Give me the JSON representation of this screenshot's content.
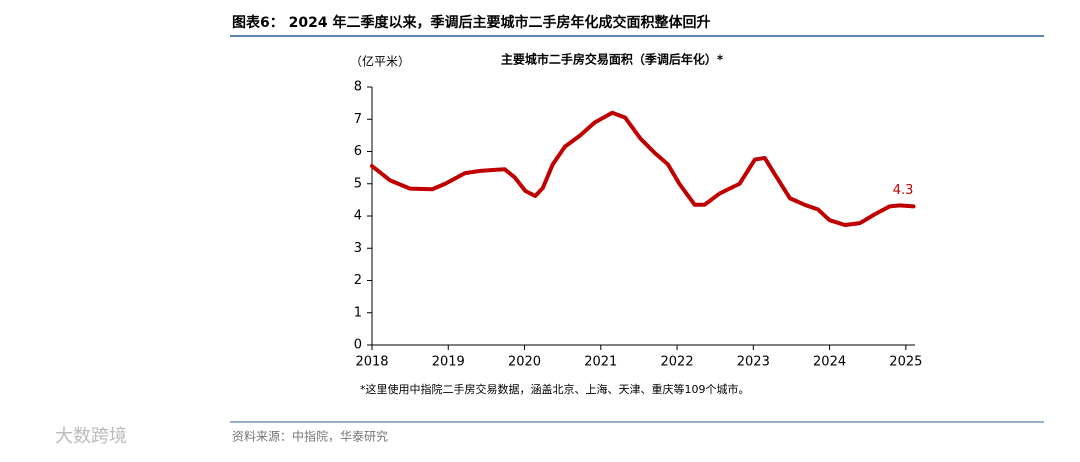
{
  "figure_title": "图表6： 2024 年二季度以来，季调后主要城市二手房年化成交面积整体回升",
  "chart_data": {
    "type": "line",
    "title": "主要城市二手房交易面积（季调后年化）*",
    "y_label": "（亿平米）",
    "x": [
      2018.0,
      2018.24,
      2018.5,
      2018.79,
      2018.96,
      2019.22,
      2019.42,
      2019.61,
      2019.74,
      2019.87,
      2020.01,
      2020.14,
      2020.24,
      2020.37,
      2020.53,
      2020.73,
      2020.92,
      2021.15,
      2021.32,
      2021.52,
      2021.71,
      2021.88,
      2022.03,
      2022.23,
      2022.36,
      2022.56,
      2022.82,
      2023.02,
      2023.15,
      2023.28,
      2023.48,
      2023.67,
      2023.85,
      2024.0,
      2024.2,
      2024.4,
      2024.59,
      2024.79,
      2024.92,
      2025.1
    ],
    "series": [
      {
        "name": "主要城市二手房交易面积",
        "color": "#c00000",
        "values": [
          5.55,
          5.1,
          4.85,
          4.83,
          5.0,
          5.33,
          5.4,
          5.43,
          5.45,
          5.2,
          4.78,
          4.62,
          4.87,
          5.6,
          6.15,
          6.5,
          6.9,
          7.2,
          7.05,
          6.4,
          5.95,
          5.6,
          5.0,
          4.35,
          4.35,
          4.7,
          5.0,
          5.75,
          5.8,
          5.3,
          4.55,
          4.35,
          4.2,
          3.87,
          3.72,
          3.78,
          4.05,
          4.3,
          4.33,
          4.3
        ]
      }
    ],
    "xlim": [
      2018,
      2025.12
    ],
    "xticks": [
      2018,
      2019,
      2020,
      2021,
      2022,
      2023,
      2024,
      2025
    ],
    "ylim": [
      0,
      8
    ],
    "yticks": [
      0,
      1,
      2,
      3,
      4,
      5,
      6,
      7,
      8
    ],
    "grid": false,
    "note": "*这里使用中指院二手房交易数据，涵盖北京、上海、天津、重庆等109个城市。"
  },
  "source": "资料来源：中指院，华泰研究",
  "watermark": "大数跨境"
}
